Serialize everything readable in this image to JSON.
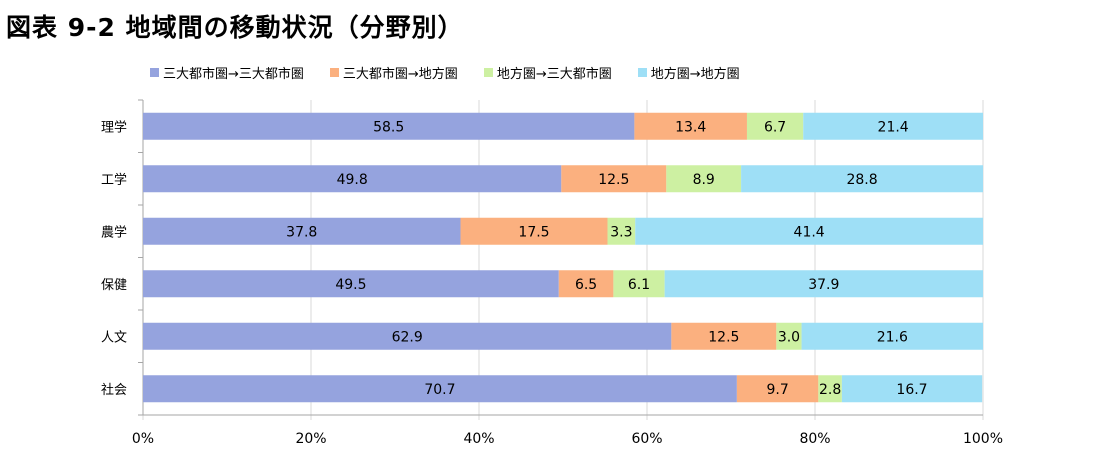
{
  "page_title": "図表 9-2 地域間の移動状況（分野別）",
  "chart_data": {
    "type": "bar",
    "orientation": "horizontal",
    "stacked": true,
    "percent": true,
    "title": "",
    "xlabel": "",
    "ylabel": "",
    "xlim": [
      0,
      100
    ],
    "grid": true,
    "legend_position": "top",
    "categories": [
      "理学",
      "工学",
      "農学",
      "保健",
      "人文",
      "社会"
    ],
    "series": [
      {
        "name": "三大都市圏→三大都市圏",
        "color": "#95a3de",
        "values": [
          58.5,
          49.8,
          37.8,
          49.5,
          62.9,
          70.7
        ]
      },
      {
        "name": "三大都市圏→地方圏",
        "color": "#fbb07f",
        "values": [
          13.4,
          12.5,
          17.5,
          6.5,
          12.5,
          9.7
        ]
      },
      {
        "name": "地方圏→三大都市圏",
        "color": "#cdf0a2",
        "values": [
          6.7,
          8.9,
          3.3,
          6.1,
          3.0,
          2.8
        ]
      },
      {
        "name": "地方圏→地方圏",
        "color": "#9edff6",
        "values": [
          21.4,
          28.8,
          41.4,
          37.9,
          21.6,
          16.7
        ]
      }
    ],
    "value_labels": [
      [
        "58.5",
        "13.4",
        "6.7",
        "21.4"
      ],
      [
        "49.8",
        "12.5",
        "8.9",
        "28.8"
      ],
      [
        "37.8",
        "17.5",
        "3.3",
        "41.4"
      ],
      [
        "49.5",
        "6.5",
        "6.1",
        "37.9"
      ],
      [
        "62.9",
        "12.5",
        "3.0",
        "21.6"
      ],
      [
        "70.7",
        "9.7",
        "2.8",
        "16.7"
      ]
    ],
    "x_ticks": [
      "0%",
      "20%",
      "40%",
      "60%",
      "80%",
      "100%"
    ],
    "x_tick_values": [
      0,
      20,
      40,
      60,
      80,
      100
    ]
  }
}
